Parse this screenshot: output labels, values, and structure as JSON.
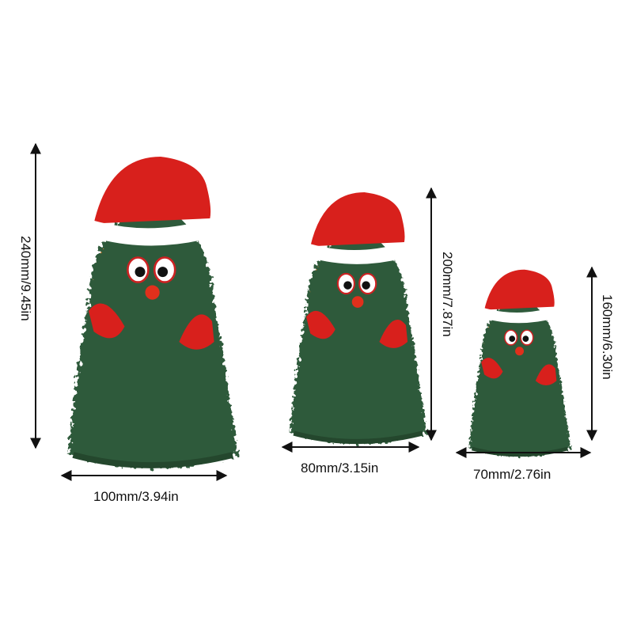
{
  "products": [
    {
      "size": "large",
      "height_label": "240mm/9.45in",
      "width_label": "100mm/3.94in"
    },
    {
      "size": "medium",
      "height_label": "200mm/7.87in",
      "width_label": "80mm/3.15in"
    },
    {
      "size": "small",
      "height_label": "160mm/6.30in",
      "width_label": "70mm/2.76in"
    }
  ],
  "colors": {
    "tree": "#2f5a3a",
    "hat": "#d8201c",
    "trim": "#ffffff",
    "bag": "#b8762e",
    "arrow": "#111111"
  }
}
